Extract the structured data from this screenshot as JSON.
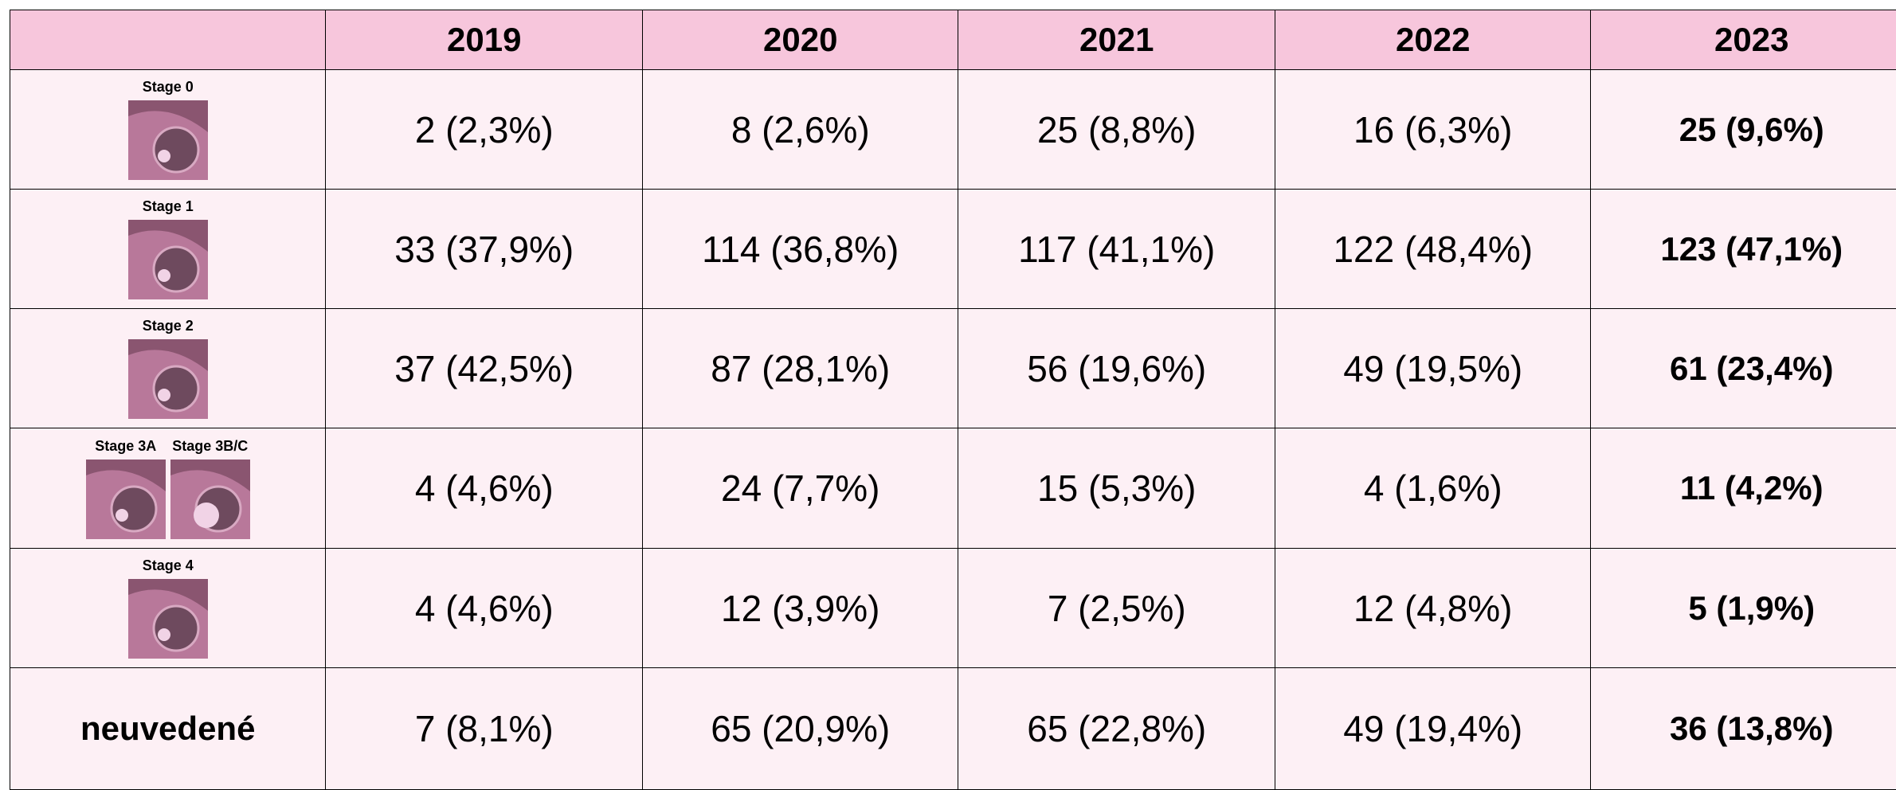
{
  "header": {
    "years": [
      "2019",
      "2020",
      "2021",
      "2022",
      "2023"
    ]
  },
  "rows": [
    {
      "labels": [
        "Stage 0"
      ],
      "cells": [
        "2 (2,3%)",
        "8 (2,6%)",
        "25 (8,8%)",
        "16 (6,3%)",
        "25 (9,6%)"
      ]
    },
    {
      "labels": [
        "Stage 1"
      ],
      "cells": [
        "33 (37,9%)",
        "114 (36,8%)",
        "117 (41,1%)",
        "122 (48,4%)",
        "123 (47,1%)"
      ]
    },
    {
      "labels": [
        "Stage 2"
      ],
      "cells": [
        "37 (42,5%)",
        "87 (28,1%)",
        "56 (19,6%)",
        "49 (19,5%)",
        "61 (23,4%)"
      ]
    },
    {
      "labels": [
        "Stage 3A",
        "Stage 3B/C"
      ],
      "cells": [
        "4 (4,6%)",
        "24 (7,7%)",
        "15 (5,3%)",
        "4 (1,6%)",
        "11 (4,2%)"
      ]
    },
    {
      "labels": [
        "Stage 4"
      ],
      "cells": [
        "4 (4,6%)",
        "12 (3,9%)",
        "7 (2,5%)",
        "12 (4,8%)",
        "5 (1,9%)"
      ]
    },
    {
      "label": "neuvedené",
      "cells": [
        "7 (8,1%)",
        "65 (20,9%)",
        "65 (22,8%)",
        "49 (19,4%)",
        "36 (13,8%)"
      ]
    }
  ]
}
